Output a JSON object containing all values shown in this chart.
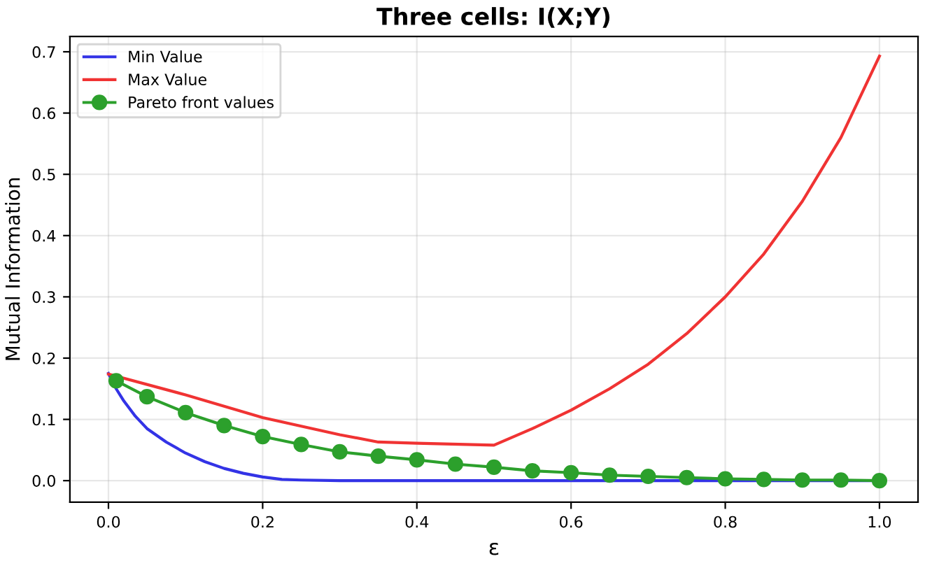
{
  "chart_data": {
    "type": "line",
    "title": "Three cells: I(X;Y)",
    "xlabel": "ε",
    "ylabel": "Mutual Information",
    "xlim": [
      -0.05,
      1.05
    ],
    "ylim": [
      -0.035,
      0.725
    ],
    "xticks": [
      {
        "value": 0,
        "label": "0.0"
      },
      0.2,
      0.4,
      0.6,
      0.8,
      {
        "value": 1,
        "label": "1.0"
      }
    ],
    "yticks": [
      {
        "value": 0,
        "label": "0.0"
      },
      0.1,
      0.2,
      0.3,
      0.4,
      0.5,
      0.6,
      0.7
    ],
    "grid": true,
    "legend": "top left",
    "series": [
      {
        "name": "Min Value",
        "color": "#3333e6",
        "marker": "none",
        "x": [
          0,
          0.01,
          0.02,
          0.035,
          0.05,
          0.075,
          0.1,
          0.125,
          0.15,
          0.175,
          0.2,
          0.225,
          0.25,
          0.3,
          0.5,
          0.8,
          1.0
        ],
        "values": [
          0.175,
          0.15,
          0.13,
          0.105,
          0.085,
          0.063,
          0.045,
          0.031,
          0.02,
          0.012,
          0.006,
          0.002,
          0.001,
          0,
          0,
          0,
          0
        ]
      },
      {
        "name": "Max Value",
        "color": "#f03333",
        "marker": "none",
        "x": [
          0,
          0.1,
          0.2,
          0.3,
          0.35,
          0.4,
          0.5,
          0.55,
          0.6,
          0.65,
          0.7,
          0.75,
          0.8,
          0.85,
          0.9,
          0.95,
          1.0
        ],
        "values": [
          0.174,
          0.14,
          0.103,
          0.075,
          0.063,
          0.061,
          0.058,
          0.085,
          0.115,
          0.15,
          0.19,
          0.24,
          0.3,
          0.37,
          0.456,
          0.56,
          0.693
        ]
      },
      {
        "name": "Pareto front values",
        "color": "#2ca02c",
        "marker": "circle",
        "x": [
          0.01,
          0.05,
          0.1,
          0.15,
          0.2,
          0.25,
          0.3,
          0.35,
          0.4,
          0.45,
          0.5,
          0.55,
          0.6,
          0.65,
          0.7,
          0.75,
          0.8,
          0.85,
          0.9,
          0.95,
          1.0
        ],
        "values": [
          0.163,
          0.137,
          0.111,
          0.09,
          0.072,
          0.059,
          0.047,
          0.04,
          0.034,
          0.027,
          0.022,
          0.016,
          0.013,
          0.009,
          0.007,
          0.005,
          0.003,
          0.002,
          0.001,
          0.001,
          0
        ]
      }
    ]
  }
}
